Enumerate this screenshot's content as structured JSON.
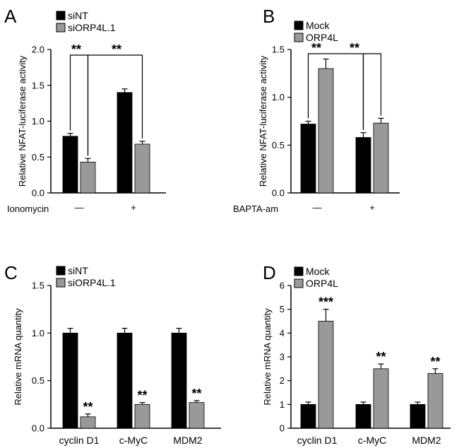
{
  "colors": {
    "series1": "#000000",
    "series2": "#999999",
    "axis": "#000000"
  },
  "chart_data": [
    {
      "id": "A",
      "type": "bar",
      "legend": [
        "siNT",
        "siORP4L.1"
      ],
      "ylabel": "Relative NFAT-luciferase activity",
      "ylim": [
        0,
        2.0
      ],
      "yticks": [
        "0.0",
        "0.5",
        "1.0",
        "1.5",
        "2.0"
      ],
      "factor_label": "Ionomycin",
      "categories": [
        "—",
        "+"
      ],
      "series": [
        {
          "name": "siNT",
          "values": [
            0.79,
            1.4
          ],
          "errors": [
            0.04,
            0.05
          ]
        },
        {
          "name": "siORP4L.1",
          "values": [
            0.43,
            0.68
          ],
          "errors": [
            0.05,
            0.04
          ]
        }
      ],
      "annotations": [
        "**",
        "**"
      ]
    },
    {
      "id": "B",
      "type": "bar",
      "legend": [
        "Mock",
        "ORP4L"
      ],
      "ylabel": "Relative NFAT-luciferase activity",
      "ylim": [
        0,
        1.5
      ],
      "yticks": [
        "0.0",
        "0.5",
        "1.0",
        "1.5"
      ],
      "factor_label": "BAPTA-am",
      "categories": [
        "—",
        "+"
      ],
      "series": [
        {
          "name": "Mock",
          "values": [
            0.72,
            0.58
          ],
          "errors": [
            0.03,
            0.05
          ]
        },
        {
          "name": "ORP4L",
          "values": [
            1.3,
            0.73
          ],
          "errors": [
            0.1,
            0.05
          ]
        }
      ],
      "annotations": [
        "**",
        "**"
      ]
    },
    {
      "id": "C",
      "type": "bar",
      "legend": [
        "siNT",
        "siORP4L.1"
      ],
      "ylabel": "Relative mRNA quantity",
      "ylim": [
        0,
        1.5
      ],
      "yticks": [
        "0.0",
        "0.5",
        "1.0",
        "1.5"
      ],
      "categories": [
        "cyclin D1",
        "c-MyC",
        "MDM2"
      ],
      "series": [
        {
          "name": "siNT",
          "values": [
            1.0,
            1.0,
            1.0
          ],
          "errors": [
            0.05,
            0.05,
            0.05
          ]
        },
        {
          "name": "siORP4L.1",
          "values": [
            0.12,
            0.25,
            0.27
          ],
          "errors": [
            0.03,
            0.02,
            0.02
          ]
        }
      ],
      "annotations": [
        "**",
        "**",
        "**"
      ]
    },
    {
      "id": "D",
      "type": "bar",
      "legend": [
        "Mock",
        "ORP4L"
      ],
      "ylabel": "Relative mRNA quantity",
      "ylim": [
        0,
        6
      ],
      "yticks": [
        "0",
        "1",
        "2",
        "3",
        "4",
        "5",
        "6"
      ],
      "categories": [
        "cyclin D1",
        "c-MyC",
        "MDM2"
      ],
      "series": [
        {
          "name": "Mock",
          "values": [
            1.0,
            1.0,
            1.0
          ],
          "errors": [
            0.1,
            0.1,
            0.1
          ]
        },
        {
          "name": "ORP4L",
          "values": [
            4.5,
            2.5,
            2.3
          ],
          "errors": [
            0.5,
            0.2,
            0.2
          ]
        }
      ],
      "annotations": [
        "***",
        "**",
        "**"
      ]
    }
  ]
}
